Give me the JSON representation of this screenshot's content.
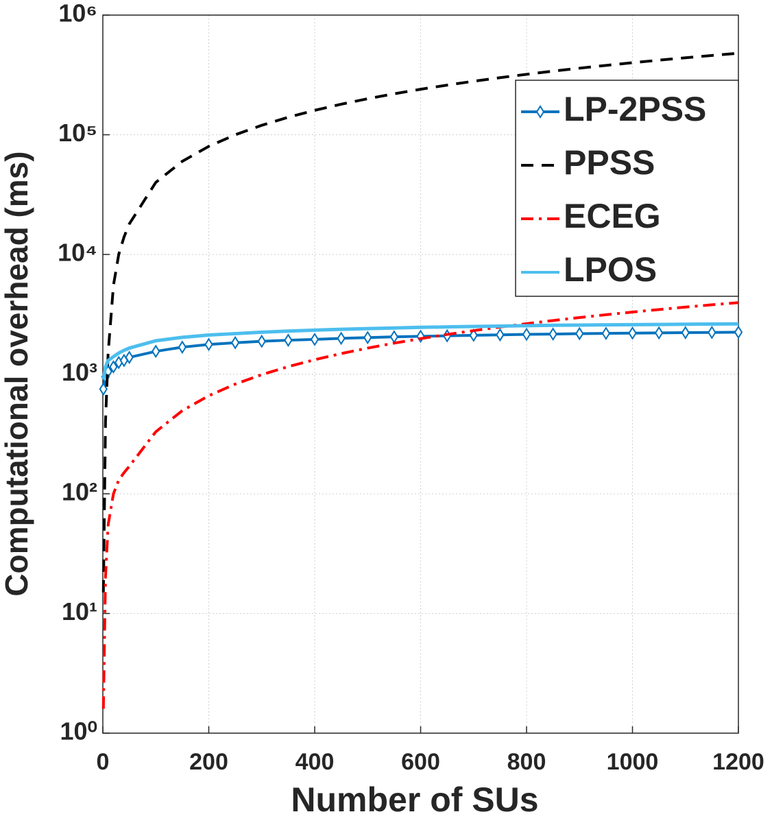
{
  "chart_data": {
    "type": "line",
    "xlabel": "Number of SUs",
    "ylabel": "Computational overhead (ms)",
    "x": [
      1,
      5,
      10,
      20,
      30,
      40,
      50,
      100,
      150,
      200,
      250,
      300,
      350,
      400,
      450,
      500,
      550,
      600,
      650,
      700,
      750,
      800,
      850,
      900,
      950,
      1000,
      1050,
      1100,
      1150,
      1200
    ],
    "series": [
      {
        "name": "LP-2PSS",
        "color": "#0072bd",
        "dash": "solid",
        "marker": "diamond",
        "values": [
          750,
          950,
          1050,
          1150,
          1250,
          1300,
          1380,
          1550,
          1680,
          1770,
          1830,
          1880,
          1920,
          1950,
          1990,
          2020,
          2050,
          2070,
          2090,
          2110,
          2130,
          2150,
          2160,
          2180,
          2190,
          2200,
          2210,
          2220,
          2230,
          2240
        ]
      },
      {
        "name": "PPSS",
        "color": "#000000",
        "dash": "dashed",
        "values": [
          15,
          400,
          1500,
          5500,
          10000,
          14000,
          18000,
          40000,
          60000,
          80000,
          100000,
          120000,
          140000,
          160000,
          180000,
          200000,
          220000,
          240000,
          260000,
          280000,
          300000,
          320000,
          340000,
          360000,
          380000,
          400000,
          420000,
          440000,
          460000,
          480000
        ]
      },
      {
        "name": "ECEG",
        "color": "#ff0000",
        "dash": "dashdot",
        "values": [
          1.6,
          20,
          55,
          100,
          130,
          150,
          170,
          330,
          495,
          660,
          825,
          990,
          1155,
          1320,
          1485,
          1650,
          1815,
          1980,
          2145,
          2310,
          2475,
          2640,
          2805,
          2970,
          3135,
          3300,
          3465,
          3630,
          3795,
          3960
        ]
      },
      {
        "name": "LPOS",
        "color": "#4dbeee",
        "dash": "solid",
        "values": [
          900,
          1150,
          1300,
          1400,
          1500,
          1580,
          1650,
          1900,
          2030,
          2120,
          2180,
          2240,
          2290,
          2330,
          2370,
          2400,
          2430,
          2460,
          2480,
          2500,
          2520,
          2540,
          2560,
          2570,
          2580,
          2590,
          2600,
          2610,
          2620,
          2630
        ]
      }
    ],
    "xlim": [
      0,
      1200
    ],
    "xticks": [
      0,
      200,
      400,
      600,
      800,
      1000,
      1200
    ],
    "ylim": [
      1,
      1000000
    ],
    "yscale": "log",
    "yticks": [
      {
        "value": 1,
        "label": "10⁰"
      },
      {
        "value": 10,
        "label": "10¹"
      },
      {
        "value": 100,
        "label": "10²"
      },
      {
        "value": 1000,
        "label": "10³"
      },
      {
        "value": 10000,
        "label": "10⁴"
      },
      {
        "value": 100000,
        "label": "10⁵"
      },
      {
        "value": 1000000,
        "label": "10⁶"
      }
    ],
    "grid": true,
    "legend": "northeast"
  }
}
